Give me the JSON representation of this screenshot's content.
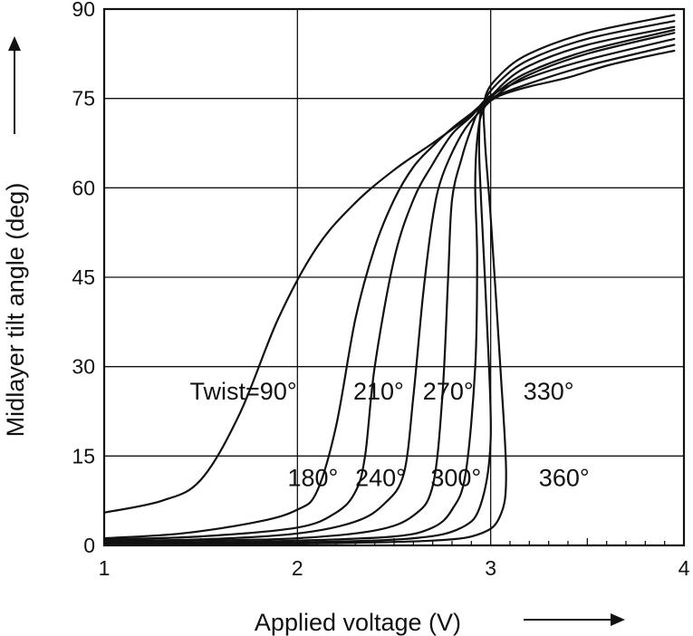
{
  "chart_data": {
    "type": "line",
    "title": "",
    "xlabel": "Applied voltage (V)",
    "ylabel": "Midlayer tilt angle (deg)",
    "xlim": [
      1,
      4
    ],
    "ylim": [
      0,
      90
    ],
    "x_ticks": [
      "1",
      "2",
      "3",
      "4"
    ],
    "y_ticks": [
      "0",
      "15",
      "30",
      "45",
      "60",
      "75",
      "90"
    ],
    "grid": true,
    "series": [
      {
        "name": "Twist=90°",
        "points": [
          [
            1.0,
            5.5
          ],
          [
            1.3,
            7.5
          ],
          [
            1.5,
            11
          ],
          [
            1.7,
            22
          ],
          [
            1.9,
            38
          ],
          [
            2.1,
            50
          ],
          [
            2.3,
            57.5
          ],
          [
            2.5,
            63
          ],
          [
            2.7,
            67.5
          ],
          [
            2.85,
            71
          ],
          [
            2.95,
            73.5
          ],
          [
            3.05,
            75.5
          ],
          [
            3.2,
            77
          ],
          [
            3.4,
            78.5
          ],
          [
            3.6,
            80.5
          ],
          [
            3.8,
            82
          ],
          [
            3.95,
            83
          ]
        ]
      },
      {
        "name": "180°",
        "points": [
          [
            1.0,
            1.2
          ],
          [
            1.4,
            2
          ],
          [
            1.8,
            4
          ],
          [
            2.0,
            6
          ],
          [
            2.1,
            9
          ],
          [
            2.2,
            20
          ],
          [
            2.3,
            38
          ],
          [
            2.4,
            50
          ],
          [
            2.5,
            58
          ],
          [
            2.6,
            63.5
          ],
          [
            2.7,
            67
          ],
          [
            2.8,
            70
          ],
          [
            2.9,
            72.5
          ],
          [
            3.0,
            75
          ],
          [
            3.2,
            77.5
          ],
          [
            3.5,
            80.5
          ],
          [
            3.95,
            84
          ]
        ]
      },
      {
        "name": "210°",
        "points": [
          [
            1.0,
            1
          ],
          [
            1.5,
            1.5
          ],
          [
            2.0,
            3
          ],
          [
            2.2,
            5.5
          ],
          [
            2.3,
            9
          ],
          [
            2.35,
            15
          ],
          [
            2.4,
            30
          ],
          [
            2.5,
            48
          ],
          [
            2.6,
            58
          ],
          [
            2.7,
            64
          ],
          [
            2.8,
            69
          ],
          [
            2.9,
            72
          ],
          [
            3.0,
            75.5
          ],
          [
            3.2,
            78.5
          ],
          [
            3.5,
            81.5
          ],
          [
            3.95,
            85
          ]
        ]
      },
      {
        "name": "240°",
        "points": [
          [
            1.0,
            0.8
          ],
          [
            1.5,
            1
          ],
          [
            2.0,
            2
          ],
          [
            2.3,
            4
          ],
          [
            2.45,
            7
          ],
          [
            2.55,
            12
          ],
          [
            2.6,
            25
          ],
          [
            2.65,
            42
          ],
          [
            2.7,
            55
          ],
          [
            2.75,
            62
          ],
          [
            2.85,
            69
          ],
          [
            2.95,
            73
          ],
          [
            3.05,
            76
          ],
          [
            3.2,
            79
          ],
          [
            3.5,
            82.5
          ],
          [
            3.95,
            86
          ]
        ]
      },
      {
        "name": "270°",
        "points": [
          [
            1.0,
            0.5
          ],
          [
            1.5,
            0.8
          ],
          [
            2.0,
            1.2
          ],
          [
            2.4,
            2.5
          ],
          [
            2.6,
            5
          ],
          [
            2.7,
            10
          ],
          [
            2.75,
            25
          ],
          [
            2.78,
            45
          ],
          [
            2.8,
            58
          ],
          [
            2.85,
            65
          ],
          [
            2.9,
            70
          ],
          [
            2.95,
            73.5
          ],
          [
            3.05,
            76.5
          ],
          [
            3.2,
            79.5
          ],
          [
            3.5,
            83
          ],
          [
            3.95,
            86.5
          ]
        ]
      },
      {
        "name": "300°",
        "points": [
          [
            1.0,
            0.3
          ],
          [
            1.5,
            0.5
          ],
          [
            2.0,
            0.8
          ],
          [
            2.5,
            1.5
          ],
          [
            2.7,
            3
          ],
          [
            2.8,
            6
          ],
          [
            2.87,
            12
          ],
          [
            2.92,
            30
          ],
          [
            2.93,
            48
          ],
          [
            2.92,
            60
          ],
          [
            2.93,
            68
          ],
          [
            2.96,
            73
          ],
          [
            3.05,
            77
          ],
          [
            3.2,
            80.5
          ],
          [
            3.5,
            84
          ],
          [
            3.95,
            87
          ]
        ]
      },
      {
        "name": "330°",
        "points": [
          [
            1.0,
            0.2
          ],
          [
            2.0,
            0.5
          ],
          [
            2.6,
            1.2
          ],
          [
            2.85,
            3
          ],
          [
            2.95,
            7
          ],
          [
            3.0,
            18
          ],
          [
            2.98,
            38
          ],
          [
            2.95,
            58
          ],
          [
            2.94,
            68
          ],
          [
            2.96,
            74
          ],
          [
            3.05,
            78
          ],
          [
            3.2,
            81.5
          ],
          [
            3.5,
            85
          ],
          [
            3.95,
            88
          ]
        ]
      },
      {
        "name": "360°",
        "points": [
          [
            1.0,
            0.1
          ],
          [
            2.0,
            0.3
          ],
          [
            2.7,
            0.8
          ],
          [
            2.95,
            2
          ],
          [
            3.05,
            5
          ],
          [
            3.08,
            12
          ],
          [
            3.05,
            30
          ],
          [
            3.0,
            55
          ],
          [
            2.97,
            68
          ],
          [
            2.97,
            75
          ],
          [
            3.05,
            79
          ],
          [
            3.2,
            82.5
          ],
          [
            3.5,
            86
          ],
          [
            3.95,
            89
          ]
        ]
      }
    ],
    "labels": [
      {
        "text": "Twist=90°",
        "x": 1.72,
        "y": 26
      },
      {
        "text": "180°",
        "x": 2.08,
        "y": 11.5
      },
      {
        "text": "210°",
        "x": 2.42,
        "y": 26
      },
      {
        "text": "240°",
        "x": 2.43,
        "y": 11.5
      },
      {
        "text": "270°",
        "x": 2.78,
        "y": 26
      },
      {
        "text": "300°",
        "x": 2.82,
        "y": 11.5
      },
      {
        "text": "330°",
        "x": 3.3,
        "y": 26
      },
      {
        "text": "360°",
        "x": 3.38,
        "y": 11.5
      }
    ]
  }
}
